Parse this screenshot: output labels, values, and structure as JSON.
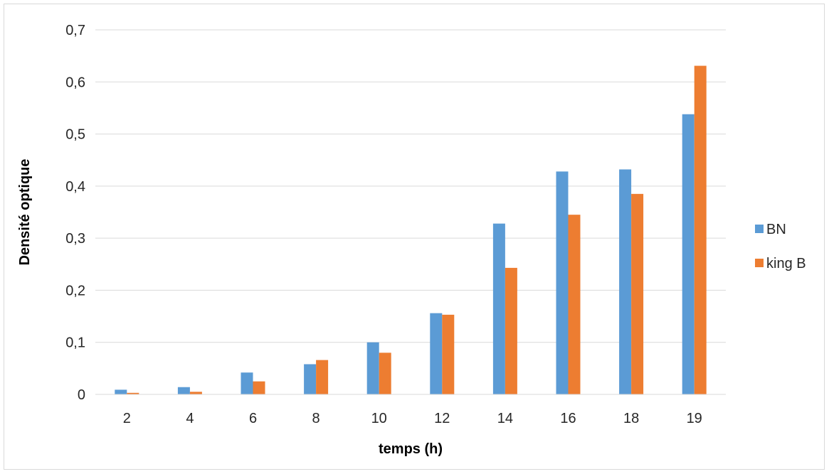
{
  "chart_data": {
    "type": "bar",
    "title": "",
    "xlabel": "temps (h)",
    "ylabel": "Densité optique",
    "categories": [
      "2",
      "4",
      "6",
      "8",
      "10",
      "12",
      "14",
      "16",
      "18",
      "19"
    ],
    "series": [
      {
        "name": "BN",
        "color": "#5b9bd5",
        "values": [
          0.009,
          0.014,
          0.042,
          0.058,
          0.1,
          0.156,
          0.328,
          0.428,
          0.432,
          0.538
        ]
      },
      {
        "name": "king B",
        "color": "#ed7d31",
        "values": [
          0.003,
          0.005,
          0.025,
          0.066,
          0.08,
          0.153,
          0.243,
          0.345,
          0.385,
          0.631
        ]
      }
    ],
    "ylim": [
      0,
      0.7
    ],
    "yticks": [
      "0",
      "0,1",
      "0,2",
      "0,3",
      "0,4",
      "0,5",
      "0,6",
      "0,7"
    ],
    "grid": true,
    "legend_position": "right"
  }
}
